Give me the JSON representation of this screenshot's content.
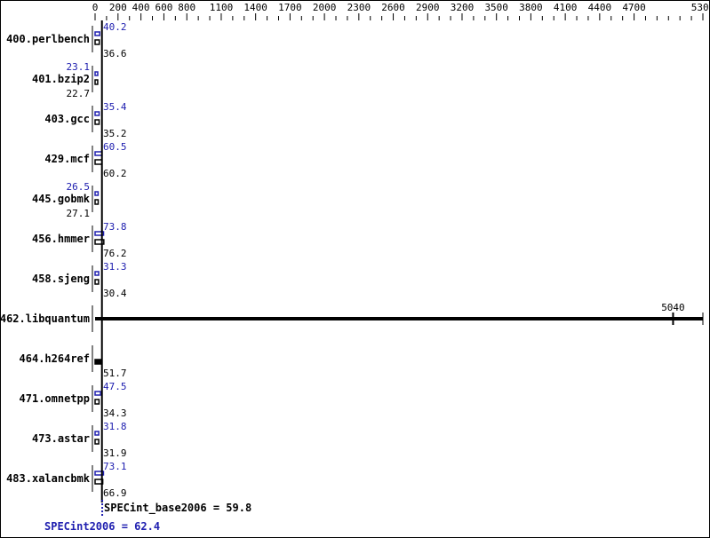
{
  "chart_data": {
    "type": "bar",
    "orientation": "horizontal",
    "xlim": [
      0,
      5300
    ],
    "x_tick_labels": [
      0,
      200,
      400,
      600,
      800,
      1100,
      1400,
      1700,
      2000,
      2300,
      2600,
      2900,
      3200,
      3500,
      3800,
      4100,
      4400,
      4700,
      5300
    ],
    "x_minor_tick_step": 100,
    "categories": [
      "400.perlbench",
      "401.bzip2",
      "403.gcc",
      "429.mcf",
      "445.gobmk",
      "456.hmmer",
      "458.sjeng",
      "462.libquantum",
      "464.h264ref",
      "471.omnetpp",
      "473.astar",
      "483.xalancbmk"
    ],
    "series": [
      {
        "name": "SPECint2006",
        "color": "#2020b0",
        "values": [
          40.2,
          23.1,
          35.4,
          60.5,
          26.5,
          73.8,
          31.3,
          null,
          null,
          47.5,
          31.8,
          73.1
        ]
      },
      {
        "name": "SPECint_base2006",
        "color": "#000000",
        "values": [
          36.6,
          22.7,
          35.2,
          60.2,
          27.1,
          76.2,
          30.4,
          5040,
          51.7,
          34.3,
          31.9,
          66.9
        ]
      }
    ],
    "summary": {
      "base_label": "SPECint_base2006 = 59.8",
      "base_value": 59.8,
      "peak_label": "SPECint2006 = 62.4",
      "peak_value": 62.4
    }
  }
}
